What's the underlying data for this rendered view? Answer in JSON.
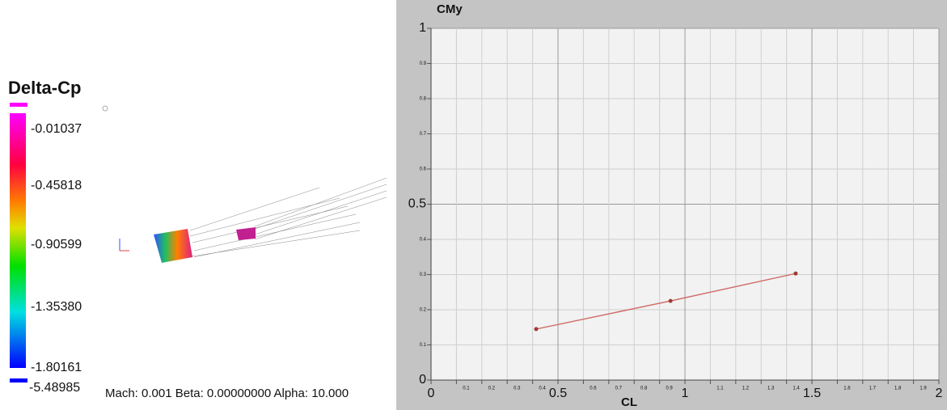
{
  "legend": {
    "title": "Delta-Cp",
    "labels": [
      "-0.01037",
      "-0.45818",
      "-0.90599",
      "-1.35380",
      "-1.80161",
      "-5.48985"
    ]
  },
  "status": "Mach: 0.001  Beta: 0.00000000  Alpha: 10.000",
  "chart_data": {
    "type": "line",
    "y_label": "CMy",
    "x_label": "CL",
    "x": [
      0.414,
      0.943,
      1.436
    ],
    "values": [
      0.145,
      0.225,
      0.303
    ],
    "color": "#d0706a",
    "marker_color": "#a03a36",
    "xlim": [
      0,
      2
    ],
    "ylim": [
      0,
      1
    ],
    "xticks": [
      0,
      0.1,
      0.2,
      0.3,
      0.4,
      0.5,
      0.6,
      0.7,
      0.8,
      0.9,
      1,
      1.1,
      1.2,
      1.3,
      1.4,
      1.5,
      1.6,
      1.7,
      1.8,
      1.9,
      2
    ],
    "yticks": [
      0,
      0.1,
      0.2,
      0.3,
      0.4,
      0.5,
      0.6,
      0.7,
      0.8,
      0.9,
      1
    ],
    "grid": true
  }
}
